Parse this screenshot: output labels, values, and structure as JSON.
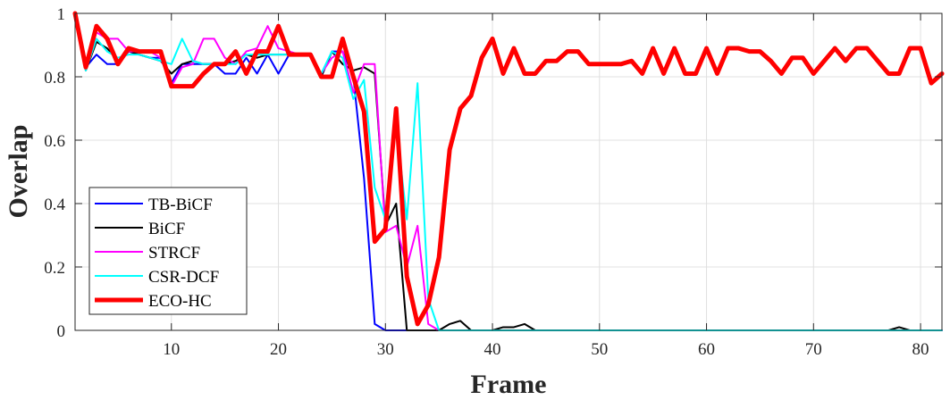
{
  "chart_data": {
    "type": "line",
    "title": "",
    "xlabel": "Frame",
    "ylabel": "Overlap",
    "xlim": [
      1,
      82
    ],
    "ylim": [
      0,
      1
    ],
    "xticks": [
      10,
      20,
      30,
      40,
      50,
      60,
      70,
      80
    ],
    "yticks": [
      0,
      0.2,
      0.4,
      0.6,
      0.8,
      1
    ],
    "xtick_labels": [
      "10",
      "20",
      "30",
      "40",
      "50",
      "60",
      "70",
      "80"
    ],
    "ytick_labels": [
      "0",
      "0.2",
      "0.4",
      "0.6",
      "0.8",
      "1"
    ],
    "grid": true,
    "legend_position": "lower-left",
    "x": [
      1,
      2,
      3,
      4,
      5,
      6,
      7,
      8,
      9,
      10,
      11,
      12,
      13,
      14,
      15,
      16,
      17,
      18,
      19,
      20,
      21,
      22,
      23,
      24,
      25,
      26,
      27,
      28,
      29,
      30,
      31,
      32,
      33,
      34,
      35,
      36,
      37,
      38,
      39,
      40,
      41,
      42,
      43,
      44,
      45,
      46,
      47,
      48,
      49,
      50,
      51,
      52,
      53,
      54,
      55,
      56,
      57,
      58,
      59,
      60,
      61,
      62,
      63,
      64,
      65,
      66,
      67,
      68,
      69,
      70,
      71,
      72,
      73,
      74,
      75,
      76,
      77,
      78,
      79,
      80,
      81,
      82
    ],
    "series": [
      {
        "name": "TB-BiCF",
        "color": "#0000ff",
        "width": 2,
        "values": [
          1,
          0.83,
          0.87,
          0.84,
          0.84,
          0.88,
          0.87,
          0.86,
          0.86,
          0.78,
          0.84,
          0.84,
          0.84,
          0.84,
          0.81,
          0.81,
          0.86,
          0.81,
          0.87,
          0.81,
          0.87,
          0.87,
          0.87,
          0.8,
          0.88,
          0.88,
          0.8,
          0.48,
          0.02,
          0,
          0,
          0,
          0,
          0,
          0,
          0,
          0,
          0,
          0,
          0,
          0,
          0,
          0,
          0,
          0,
          0,
          0,
          0,
          0,
          0,
          0,
          0,
          0,
          0,
          0,
          0,
          0,
          0,
          0,
          0,
          0,
          0,
          0,
          0,
          0,
          0,
          0,
          0,
          0,
          0,
          0,
          0,
          0,
          0,
          0,
          0,
          0,
          0,
          0,
          0,
          0,
          0
        ]
      },
      {
        "name": "BiCF",
        "color": "#000000",
        "width": 2,
        "values": [
          1,
          0.82,
          0.91,
          0.89,
          0.85,
          0.88,
          0.87,
          0.86,
          0.85,
          0.81,
          0.84,
          0.85,
          0.84,
          0.84,
          0.84,
          0.85,
          0.87,
          0.86,
          0.87,
          0.87,
          0.87,
          0.87,
          0.87,
          0.8,
          0.88,
          0.84,
          0.82,
          0.83,
          0.81,
          0.33,
          0.4,
          0,
          0,
          0,
          0,
          0.02,
          0.03,
          0,
          0,
          0,
          0.01,
          0.01,
          0.02,
          0,
          0,
          0,
          0,
          0,
          0,
          0,
          0,
          0,
          0,
          0,
          0,
          0,
          0,
          0,
          0,
          0,
          0,
          0,
          0,
          0,
          0,
          0,
          0,
          0,
          0,
          0,
          0,
          0,
          0,
          0,
          0,
          0,
          0,
          0.01,
          0,
          0,
          0,
          0
        ]
      },
      {
        "name": "STRCF",
        "color": "#ff00ff",
        "width": 2,
        "values": [
          1,
          0.83,
          0.94,
          0.92,
          0.92,
          0.88,
          0.88,
          0.88,
          0.86,
          0.77,
          0.83,
          0.84,
          0.92,
          0.92,
          0.86,
          0.84,
          0.88,
          0.89,
          0.96,
          0.89,
          0.88,
          0.87,
          0.87,
          0.81,
          0.86,
          0.88,
          0.75,
          0.84,
          0.84,
          0.31,
          0.33,
          0.2,
          0.33,
          0.02,
          0,
          0,
          0,
          0,
          0,
          0,
          0,
          0,
          0,
          0,
          0,
          0,
          0,
          0,
          0,
          0,
          0,
          0,
          0,
          0,
          0,
          0,
          0,
          0,
          0,
          0,
          0,
          0,
          0,
          0,
          0,
          0,
          0,
          0,
          0,
          0,
          0,
          0,
          0,
          0,
          0,
          0,
          0,
          0,
          0,
          0,
          0,
          0
        ]
      },
      {
        "name": "CSR-DCF",
        "color": "#00ffff",
        "width": 2,
        "values": [
          1,
          0.82,
          0.92,
          0.88,
          0.86,
          0.87,
          0.87,
          0.86,
          0.85,
          0.84,
          0.92,
          0.85,
          0.84,
          0.84,
          0.84,
          0.84,
          0.87,
          0.87,
          0.87,
          0.87,
          0.87,
          0.87,
          0.87,
          0.81,
          0.88,
          0.86,
          0.73,
          0.79,
          0.45,
          0.35,
          0.65,
          0.35,
          0.78,
          0.1,
          0,
          0,
          0,
          0,
          0,
          0,
          0,
          0,
          0,
          0,
          0,
          0,
          0,
          0,
          0,
          0,
          0,
          0,
          0,
          0,
          0,
          0,
          0,
          0,
          0,
          0,
          0,
          0,
          0,
          0,
          0,
          0,
          0,
          0,
          0,
          0,
          0,
          0,
          0,
          0,
          0,
          0,
          0,
          0,
          0,
          0,
          0,
          0
        ]
      },
      {
        "name": "ECO-HC",
        "color": "#ff0000",
        "width": 5,
        "values": [
          1,
          0.83,
          0.96,
          0.92,
          0.84,
          0.89,
          0.88,
          0.88,
          0.88,
          0.77,
          0.77,
          0.77,
          0.81,
          0.84,
          0.84,
          0.88,
          0.81,
          0.88,
          0.88,
          0.96,
          0.87,
          0.87,
          0.87,
          0.8,
          0.8,
          0.92,
          0.8,
          0.69,
          0.28,
          0.32,
          0.7,
          0.17,
          0.02,
          0.08,
          0.23,
          0.57,
          0.7,
          0.74,
          0.86,
          0.92,
          0.81,
          0.89,
          0.81,
          0.81,
          0.85,
          0.85,
          0.88,
          0.88,
          0.84,
          0.84,
          0.84,
          0.84,
          0.85,
          0.81,
          0.89,
          0.81,
          0.89,
          0.81,
          0.81,
          0.89,
          0.81,
          0.89,
          0.89,
          0.88,
          0.88,
          0.85,
          0.81,
          0.86,
          0.86,
          0.81,
          0.85,
          0.89,
          0.85,
          0.89,
          0.89,
          0.85,
          0.81,
          0.81,
          0.89,
          0.89,
          0.78,
          0.81
        ]
      }
    ]
  }
}
